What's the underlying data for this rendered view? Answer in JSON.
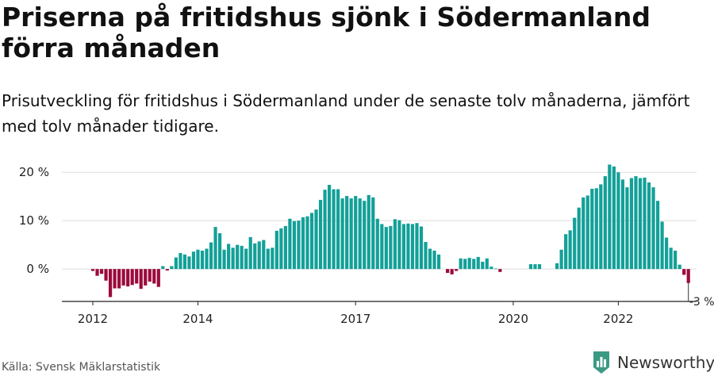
{
  "title": "Priserna på fritidshus sjönk i Södermanland förra månaden",
  "subtitle": "Prisutveckling för fritidshus i Södermanland under de senaste tolv månaderna, jämfört med tolv månader tidigare.",
  "source": "Källa: Svensk Mäklarstatistik",
  "brand": {
    "name": "Newsworthy",
    "icon": "newsworthy-logo-icon",
    "color": "#3a9a84"
  },
  "chart_data": {
    "type": "bar",
    "title": "",
    "xlabel": "",
    "ylabel": "",
    "ylim": [
      -6.7,
      22
    ],
    "yticks": [
      0,
      10,
      20
    ],
    "ytick_labels": [
      "0 %",
      "10 %",
      "20 %"
    ],
    "xtick_labels": [
      {
        "label": "2012",
        "date": "2012-01"
      },
      {
        "label": "2014",
        "date": "2014-01"
      },
      {
        "label": "2017",
        "date": "2017-01"
      },
      {
        "label": "2020",
        "date": "2020-01"
      },
      {
        "label": "2022",
        "date": "2022-01"
      }
    ],
    "grid": true,
    "colors": {
      "positive": "#13a098",
      "negative": "#9b0b3d",
      "grid": "#dddddd",
      "axis": "#222222"
    },
    "end_label": "-3 %",
    "series": [
      {
        "start": "2012-01",
        "values": [
          -0.4,
          -1.4,
          -1.0,
          -2.4,
          -5.8,
          -4.0,
          -4.0,
          -3.4,
          -3.6,
          -3.3,
          -3.0,
          -4.1,
          -3.4,
          -2.6,
          -3.0,
          -3.7,
          0.6,
          -0.3,
          0.6,
          2.4,
          3.3,
          3.0,
          2.6,
          3.6,
          4.0,
          3.8,
          4.2,
          5.5,
          8.7,
          7.4,
          4.0,
          5.2,
          4.4,
          5.0,
          4.8,
          4.2,
          6.6,
          5.3,
          5.7,
          6.0,
          4.2,
          4.4,
          7.9,
          8.4,
          8.9,
          10.4,
          9.9,
          10.0,
          10.7,
          10.9,
          11.6,
          12.3,
          14.3,
          16.4,
          17.4,
          16.5,
          16.5,
          14.6,
          15.1,
          14.6,
          15.1,
          14.6,
          14.1,
          15.3,
          14.8,
          10.4,
          9.3,
          8.7,
          8.9,
          10.3,
          10.1,
          9.3,
          9.4,
          9.3,
          9.5,
          8.8,
          5.6,
          4.2,
          3.8,
          3.0,
          null,
          -0.8,
          -1.1,
          -0.4,
          2.2,
          2.1,
          2.3,
          2.1,
          2.5,
          1.5,
          2.2,
          0.5,
          0.1,
          -0.6,
          null,
          null,
          null,
          null,
          null,
          null,
          1.0,
          1.0,
          1.0,
          null,
          null,
          null,
          1.2,
          4.0,
          7.2,
          8.0,
          10.6,
          12.7,
          14.8,
          15.2,
          16.6,
          16.7,
          17.5,
          19.2,
          21.6,
          21.2,
          20.0,
          18.5,
          16.9,
          18.8,
          19.2,
          18.8,
          18.9,
          17.9,
          16.9,
          14.1,
          9.8,
          6.5,
          4.4,
          3.8,
          0.9,
          -1.2,
          -2.9
        ]
      }
    ]
  }
}
